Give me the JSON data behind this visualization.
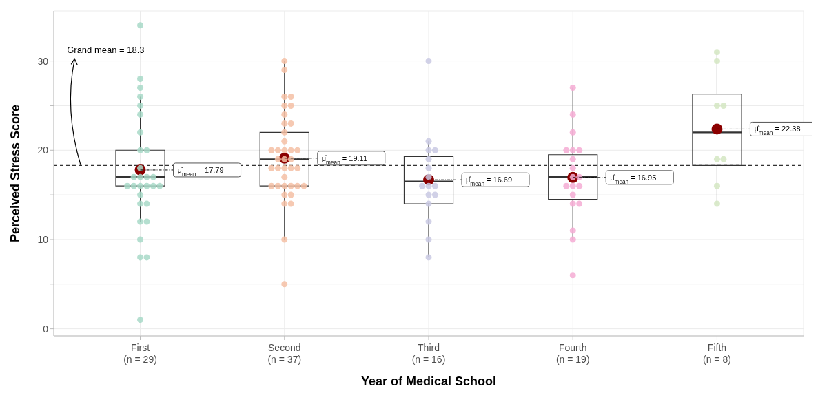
{
  "chart_data": {
    "type": "box",
    "xlabel": "Year of Medical School",
    "ylabel": "Perceived Stress Score",
    "categories": [
      "First\n(n = 29)",
      "Second\n(n = 37)",
      "Third\n(n = 16)",
      "Fourth\n(n = 19)",
      "Fifth\n(n = 8)"
    ],
    "ylim": [
      -0.8,
      35.6
    ],
    "yticks": [
      0,
      {
        "value": 5,
        "label": null
      },
      10,
      {
        "value": 15,
        "label": null
      },
      20,
      {
        "value": 25,
        "label": null
      },
      30
    ],
    "grid": true,
    "ref_lines": [
      {
        "axis": "y",
        "value": 18.3,
        "label": "Grand mean = 18.3",
        "line_style": "dashed",
        "color": "#333333"
      }
    ],
    "boxes": [
      {
        "low": 12,
        "q1": 16,
        "median": 17,
        "q3": 20,
        "high": 26,
        "mean": 17.79
      },
      {
        "low": 10,
        "q1": 16,
        "median": 19,
        "q3": 22,
        "high": 30,
        "mean": 19.11
      },
      {
        "low": 8,
        "q1": 14,
        "median": 16.5,
        "q3": 19.3,
        "high": 21,
        "mean": 16.69
      },
      {
        "low": 10,
        "q1": 14.5,
        "median": 17,
        "q3": 19.5,
        "high": 27,
        "mean": 16.95
      },
      {
        "low": 14,
        "q1": 18.3,
        "median": 22,
        "q3": 26.3,
        "high": 31,
        "mean": 22.38
      }
    ],
    "series": [
      {
        "type": "scatter",
        "color": "#a8d9c8",
        "x": [
          "First\n(n = 29)",
          "First\n(n = 29)",
          "First\n(n = 29)",
          "First\n(n = 29)",
          "First\n(n = 29)",
          "First\n(n = 29)",
          "First\n(n = 29)",
          "First\n(n = 29)",
          "First\n(n = 29)",
          "First\n(n = 29)",
          "First\n(n = 29)",
          "First\n(n = 29)",
          "First\n(n = 29)",
          "First\n(n = 29)",
          "First\n(n = 29)",
          "First\n(n = 29)",
          "First\n(n = 29)",
          "First\n(n = 29)",
          "First\n(n = 29)",
          "First\n(n = 29)",
          "First\n(n = 29)",
          "First\n(n = 29)",
          "First\n(n = 29)",
          "First\n(n = 29)",
          "First\n(n = 29)",
          "First\n(n = 29)",
          "First\n(n = 29)",
          "First\n(n = 29)",
          "First\n(n = 29)"
        ],
        "values": [
          34,
          28,
          27,
          26,
          25,
          24,
          22,
          20,
          20,
          18,
          17,
          17,
          17,
          17,
          16,
          16,
          16,
          16,
          16,
          16,
          15,
          14,
          14,
          12,
          12,
          10,
          8,
          8,
          1
        ]
      },
      {
        "type": "scatter",
        "color": "#f4bfa4",
        "x": [
          "Second\n(n = 37)",
          "Second\n(n = 37)",
          "Second\n(n = 37)",
          "Second\n(n = 37)",
          "Second\n(n = 37)",
          "Second\n(n = 37)",
          "Second\n(n = 37)",
          "Second\n(n = 37)",
          "Second\n(n = 37)",
          "Second\n(n = 37)",
          "Second\n(n = 37)",
          "Second\n(n = 37)",
          "Second\n(n = 37)",
          "Second\n(n = 37)",
          "Second\n(n = 37)",
          "Second\n(n = 37)",
          "Second\n(n = 37)",
          "Second\n(n = 37)",
          "Second\n(n = 37)",
          "Second\n(n = 37)",
          "Second\n(n = 37)",
          "Second\n(n = 37)",
          "Second\n(n = 37)",
          "Second\n(n = 37)",
          "Second\n(n = 37)",
          "Second\n(n = 37)",
          "Second\n(n = 37)",
          "Second\n(n = 37)",
          "Second\n(n = 37)",
          "Second\n(n = 37)",
          "Second\n(n = 37)",
          "Second\n(n = 37)",
          "Second\n(n = 37)",
          "Second\n(n = 37)",
          "Second\n(n = 37)",
          "Second\n(n = 37)",
          "Second\n(n = 37)"
        ],
        "values": [
          30,
          29,
          26,
          26,
          25,
          25,
          24,
          23,
          23,
          22,
          21,
          20,
          20,
          20,
          20,
          20,
          19,
          19,
          19,
          18,
          18,
          18,
          18,
          18,
          17,
          16,
          16,
          16,
          16,
          16,
          16,
          15,
          15,
          14,
          14,
          10,
          5
        ]
      },
      {
        "type": "scatter",
        "color": "#c9c9e3",
        "x": [
          "Third\n(n = 16)",
          "Third\n(n = 16)",
          "Third\n(n = 16)",
          "Third\n(n = 16)",
          "Third\n(n = 16)",
          "Third\n(n = 16)",
          "Third\n(n = 16)",
          "Third\n(n = 16)",
          "Third\n(n = 16)",
          "Third\n(n = 16)",
          "Third\n(n = 16)",
          "Third\n(n = 16)",
          "Third\n(n = 16)",
          "Third\n(n = 16)",
          "Third\n(n = 16)",
          "Third\n(n = 16)"
        ],
        "values": [
          30,
          21,
          20,
          20,
          19,
          18,
          17,
          16,
          16,
          16,
          15,
          15,
          14,
          12,
          10,
          8
        ]
      },
      {
        "type": "scatter",
        "color": "#f4acd4",
        "x": [
          "Fourth\n(n = 19)",
          "Fourth\n(n = 19)",
          "Fourth\n(n = 19)",
          "Fourth\n(n = 19)",
          "Fourth\n(n = 19)",
          "Fourth\n(n = 19)",
          "Fourth\n(n = 19)",
          "Fourth\n(n = 19)",
          "Fourth\n(n = 19)",
          "Fourth\n(n = 19)",
          "Fourth\n(n = 19)",
          "Fourth\n(n = 19)",
          "Fourth\n(n = 19)",
          "Fourth\n(n = 19)",
          "Fourth\n(n = 19)",
          "Fourth\n(n = 19)",
          "Fourth\n(n = 19)",
          "Fourth\n(n = 19)",
          "Fourth\n(n = 19)"
        ],
        "values": [
          27,
          24,
          22,
          20,
          20,
          20,
          19,
          18,
          17,
          17,
          16,
          16,
          16,
          15,
          14,
          14,
          11,
          10,
          6
        ]
      },
      {
        "type": "scatter",
        "color": "#d3e6c2",
        "x": [
          "Fifth\n(n = 8)",
          "Fifth\n(n = 8)",
          "Fifth\n(n = 8)",
          "Fifth\n(n = 8)",
          "Fifth\n(n = 8)",
          "Fifth\n(n = 8)",
          "Fifth\n(n = 8)",
          "Fifth\n(n = 8)"
        ],
        "values": [
          31,
          30,
          25,
          25,
          19,
          19,
          16,
          14
        ]
      }
    ],
    "annotations": [
      {
        "text": "μ̂$_{mean}$ = 17.79",
        "x": "First\n(n = 29)",
        "y": 17.79
      },
      {
        "text": "μ̂$_{mean}$ = 19.11",
        "x": "Second\n(n = 37)",
        "y": 19.11
      },
      {
        "text": "μ̂$_{mean}$ = 16.69",
        "x": "Third\n(n = 16)",
        "y": 16.69
      },
      {
        "text": "μ̂$_{mean}$ = 16.95",
        "x": "Fourth\n(n = 19)",
        "y": 16.95
      },
      {
        "text": "μ̂$_{mean}$ = 22.38",
        "x": "Fifth\n(n = 8)",
        "y": 22.38
      }
    ]
  }
}
